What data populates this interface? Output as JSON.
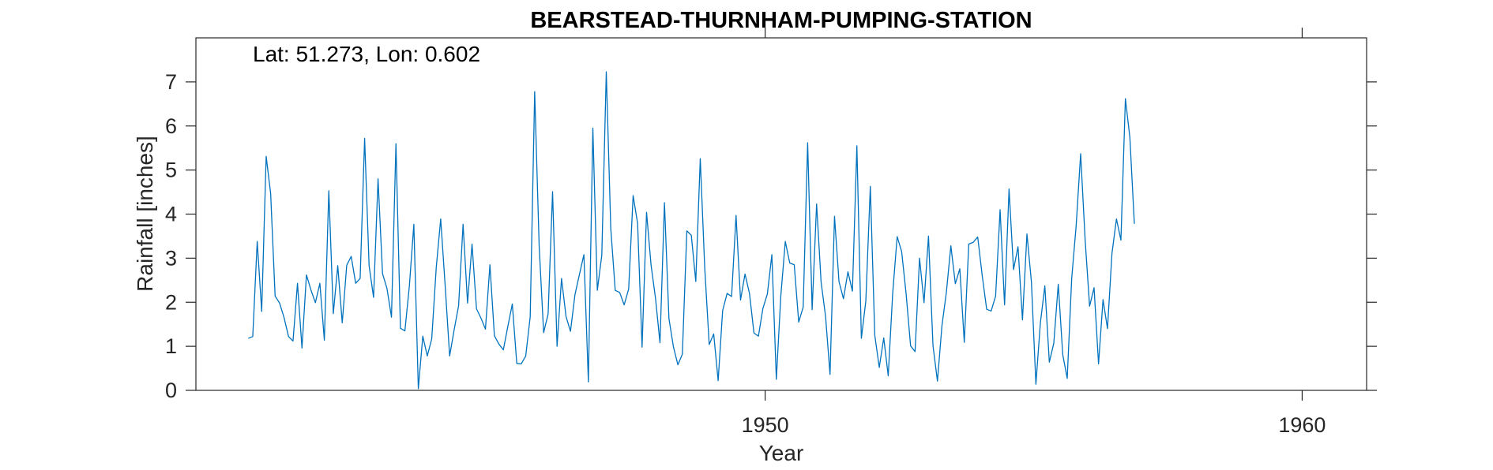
{
  "chart_data": {
    "type": "line",
    "title": "BEARSTEAD-THURNHAM-PUMPING-STATION",
    "annotation": "Lat: 51.273, Lon: 0.602",
    "xlabel": "Year",
    "ylabel": "Rainfall [inches]",
    "xlim": [
      1939.4,
      1961.2
    ],
    "ylim": [
      0,
      8
    ],
    "xticks": [
      1950,
      1960
    ],
    "yticks": [
      0,
      1,
      2,
      3,
      4,
      5,
      6,
      7
    ],
    "grid": false,
    "line_color": "#0072BD",
    "start_year": 1940.375,
    "series": [
      {
        "values": [
          1.18,
          1.22,
          3.38,
          1.79,
          5.31,
          4.47,
          2.14,
          1.98,
          1.65,
          1.22,
          1.12,
          2.43,
          0.96,
          2.62,
          2.28,
          1.99,
          2.43,
          1.14,
          4.53,
          1.74,
          2.83,
          1.53,
          2.84,
          3.04,
          2.43,
          2.54,
          5.72,
          2.83,
          2.11,
          4.8,
          2.65,
          2.31,
          1.66,
          5.6,
          1.41,
          1.35,
          2.37,
          3.77,
          0.04,
          1.23,
          0.78,
          1.17,
          2.78,
          3.89,
          2.37,
          0.78,
          1.37,
          1.92,
          3.77,
          1.98,
          3.32,
          1.85,
          1.64,
          1.39,
          2.85,
          1.24,
          1.05,
          0.92,
          1.45,
          1.96,
          0.61,
          0.6,
          0.78,
          1.67,
          6.78,
          3.28,
          1.31,
          1.73,
          4.51,
          1.0,
          2.54,
          1.68,
          1.34,
          2.17,
          2.63,
          3.08,
          0.19,
          5.95,
          2.27,
          3.07,
          7.23,
          3.68,
          2.27,
          2.22,
          1.94,
          2.3,
          4.42,
          3.79,
          0.98,
          4.04,
          2.85,
          2.09,
          1.08,
          4.26,
          1.63,
          0.99,
          0.58,
          0.82,
          3.62,
          3.52,
          2.47,
          5.26,
          2.78,
          1.04,
          1.28,
          0.22,
          1.81,
          2.2,
          2.13,
          3.97,
          2.05,
          2.64,
          2.2,
          1.3,
          1.23,
          1.86,
          2.19,
          3.08,
          0.25,
          2.14,
          3.38,
          2.89,
          2.85,
          1.55,
          1.89,
          5.62,
          1.83,
          4.23,
          2.46,
          1.68,
          0.36,
          3.95,
          2.47,
          2.08,
          2.69,
          2.25,
          5.55,
          1.18,
          2.03,
          4.63,
          1.25,
          0.52,
          1.19,
          0.33,
          2.2,
          3.49,
          3.15,
          2.19,
          1.01,
          0.88,
          3.0,
          1.99,
          3.5,
          1.02,
          0.21,
          1.46,
          2.23,
          3.28,
          2.42,
          2.76,
          1.09,
          3.32,
          3.36,
          3.48,
          2.61,
          1.84,
          1.8,
          2.14,
          4.1,
          1.94,
          4.57,
          2.74,
          3.26,
          1.6,
          3.55,
          2.46,
          0.14,
          1.53,
          2.37,
          0.64,
          1.07,
          2.41,
          0.81,
          0.27,
          2.54,
          3.74,
          5.37,
          3.42,
          1.91,
          2.33,
          0.6,
          2.06,
          1.4,
          3.11,
          3.89,
          3.41,
          6.62,
          5.74,
          3.78
        ]
      }
    ]
  }
}
